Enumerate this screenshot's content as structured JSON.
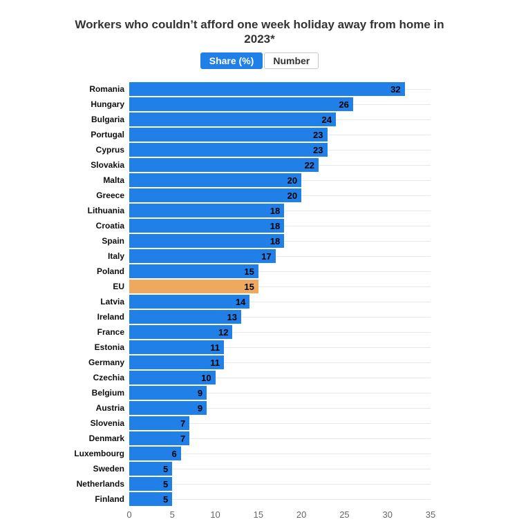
{
  "header": {
    "title": "Workers who couldn’t afford one week holiday away from home in 2023*"
  },
  "tabs": [
    {
      "label": "Share (%)",
      "active": true
    },
    {
      "label": "Number",
      "active": false
    }
  ],
  "colors": {
    "bar": "#2080e8",
    "highlight_bar": "#eea85f",
    "tab_active_bg": "#2080e8",
    "tab_active_text": "#ffffff",
    "gridline": "#e8e8e8",
    "axis_text": "#666666",
    "title_text": "#333333",
    "category_text": "#0d0d0d",
    "value_text": "#000000"
  },
  "chart_data": {
    "type": "bar",
    "orientation": "horizontal",
    "title": "Workers who couldn’t afford one week holiday away from home in 2023*",
    "categories": [
      "Romania",
      "Hungary",
      "Bulgaria",
      "Portugal",
      "Cyprus",
      "Slovakia",
      "Malta",
      "Greece",
      "Lithuania",
      "Croatia",
      "Spain",
      "Italy",
      "Poland",
      "EU",
      "Latvia",
      "Ireland",
      "France",
      "Estonia",
      "Germany",
      "Czechia",
      "Belgium",
      "Austria",
      "Slovenia",
      "Denmark",
      "Luxembourg",
      "Sweden",
      "Netherlands",
      "Finland"
    ],
    "values": [
      32,
      26,
      24,
      23,
      23,
      22,
      20,
      20,
      18,
      18,
      18,
      17,
      15,
      15,
      14,
      13,
      12,
      11,
      11,
      10,
      9,
      9,
      7,
      7,
      6,
      5,
      5,
      5
    ],
    "highlight_category": "EU",
    "unit": "percent",
    "xlabel": "",
    "ylabel": "",
    "xlim": [
      0,
      35
    ],
    "x_ticks": [
      0,
      5,
      10,
      15,
      20,
      25,
      30,
      35
    ],
    "grid": "horizontal row center gridlines",
    "value_labels": "inside-end"
  }
}
